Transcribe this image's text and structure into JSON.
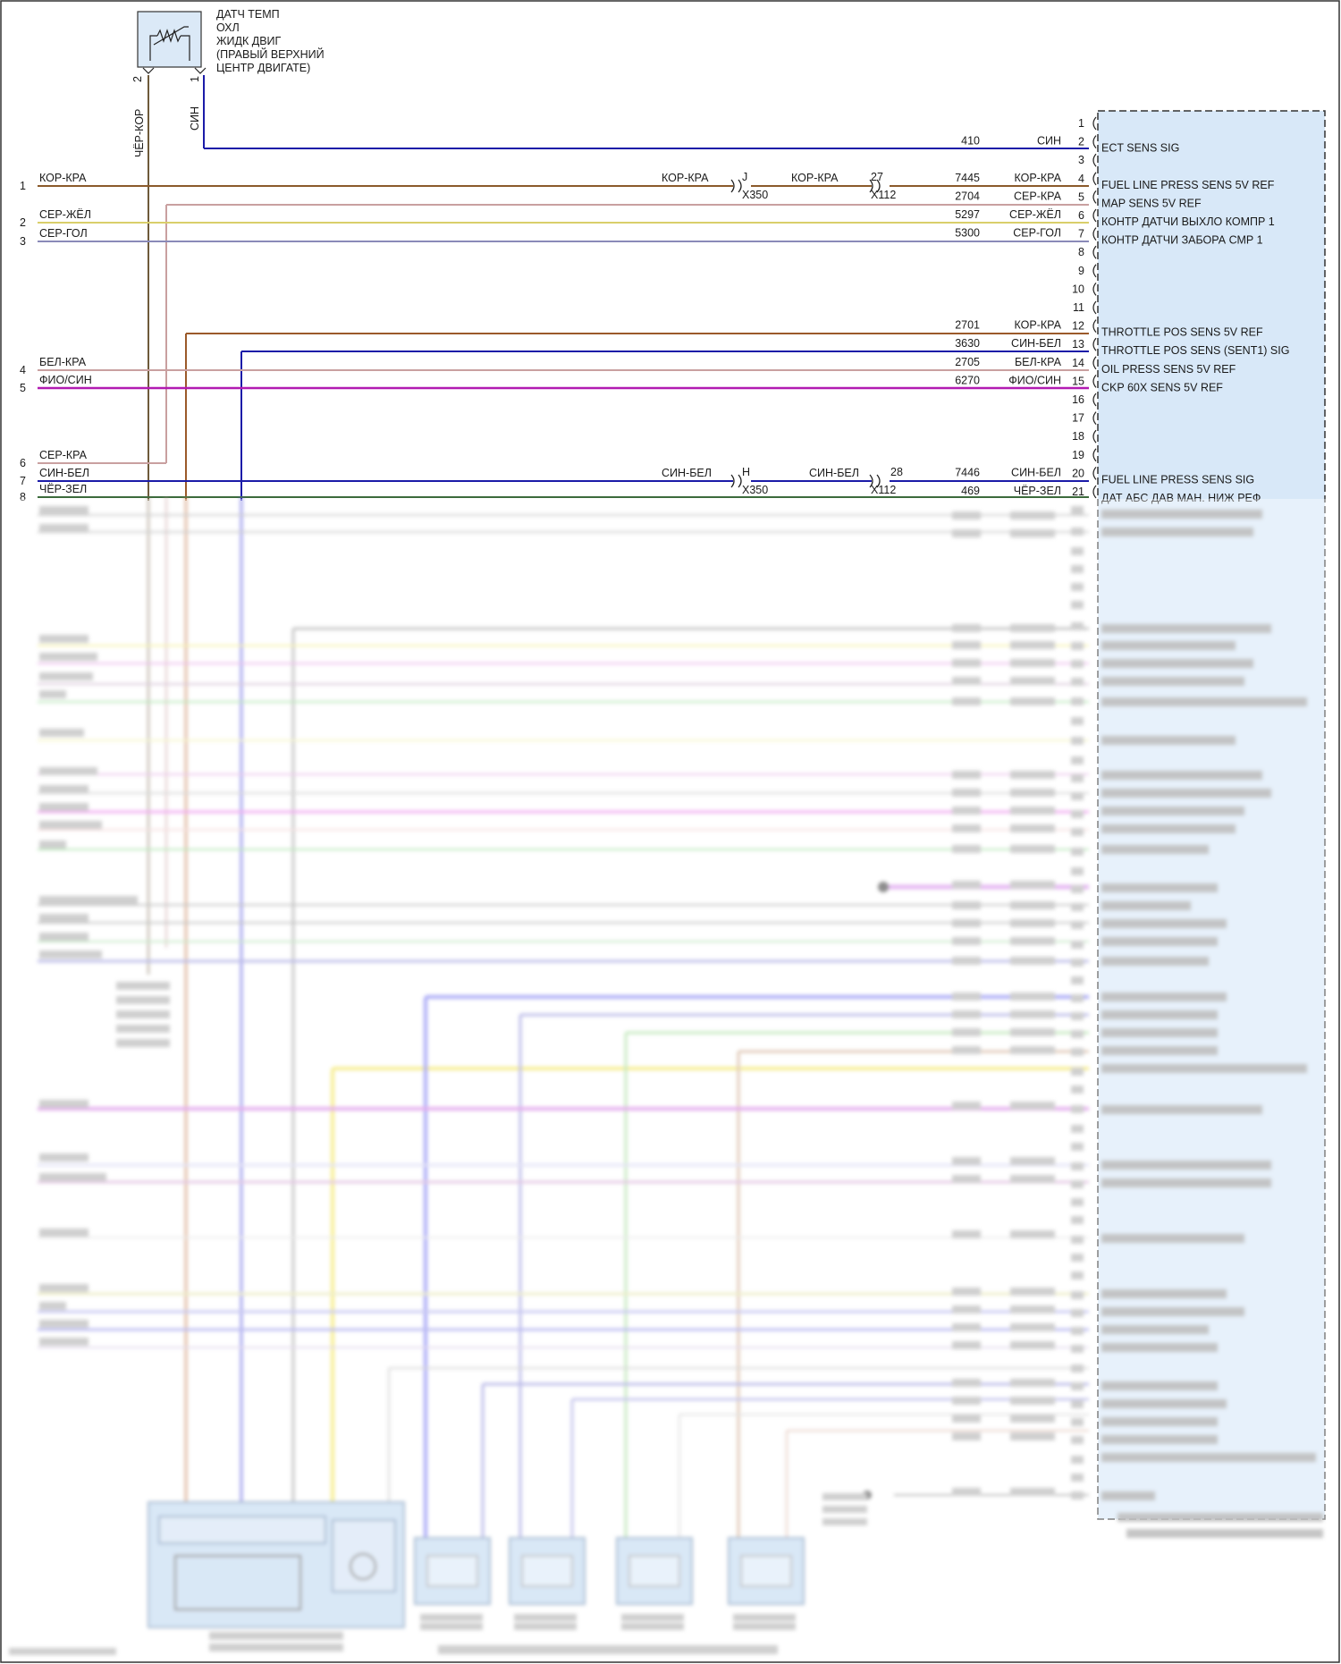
{
  "sensor": {
    "label_lines": [
      "ДАТЧ ТЕМП",
      "ОХЛ",
      "ЖИДК ДВИГ",
      "(ПРАВЫЙ ВЕРХНИЙ",
      "ЦЕНТР ДВИГАТЕ)"
    ],
    "pin_left": "2",
    "pin_right": "1",
    "wire_left_color_text": "ЧЁР-КОР",
    "wire_right_color_text": "СИН"
  },
  "colors": {
    "brown": "#8b5a2b",
    "pink": "#d4a5a5",
    "yellow": "#d9cf6a",
    "grayblue": "#8a8ab8",
    "blue": "#1b1ba8",
    "violet": "#b21bb2",
    "module_fill": "#d8e8f8",
    "sensor_fill": "#dbe9f7"
  },
  "module_pins": [
    {
      "pin": "1",
      "circuit": "",
      "color": "",
      "label": ""
    },
    {
      "pin": "2",
      "circuit": "410",
      "color": "СИН",
      "label": "ECT SENS SIG"
    },
    {
      "pin": "3",
      "circuit": "",
      "color": "",
      "label": ""
    },
    {
      "pin": "4",
      "circuit": "7445",
      "color": "КОР-КРА",
      "label": "FUEL LINE PRESS SENS 5V REF"
    },
    {
      "pin": "5",
      "circuit": "2704",
      "color": "СЕР-КРА",
      "label": "MAP SENS 5V REF"
    },
    {
      "pin": "6",
      "circuit": "5297",
      "color": "СЕР-ЖЁЛ",
      "label": "КОНТР ДАТЧИ ВЫХЛО КОМПР 1"
    },
    {
      "pin": "7",
      "circuit": "5300",
      "color": "СЕР-ГОЛ",
      "label": "КОНТР ДАТЧИ ЗАБОРА СМР 1"
    },
    {
      "pin": "8",
      "circuit": "",
      "color": "",
      "label": ""
    },
    {
      "pin": "9",
      "circuit": "",
      "color": "",
      "label": ""
    },
    {
      "pin": "10",
      "circuit": "",
      "color": "",
      "label": ""
    },
    {
      "pin": "11",
      "circuit": "",
      "color": "",
      "label": ""
    },
    {
      "pin": "12",
      "circuit": "2701",
      "color": "КОР-КРА",
      "label": "THROTTLE POS SENS 5V REF"
    },
    {
      "pin": "13",
      "circuit": "3630",
      "color": "СИН-БЕЛ",
      "label": "THROTTLE POS SENS (SENT1) SIG"
    },
    {
      "pin": "14",
      "circuit": "2705",
      "color": "БЕЛ-КРА",
      "label": "OIL PRESS SENS 5V REF"
    },
    {
      "pin": "15",
      "circuit": "6270",
      "color": "ФИО/СИН",
      "label": "CKP 60X SENS 5V REF"
    },
    {
      "pin": "16",
      "circuit": "",
      "color": "",
      "label": ""
    },
    {
      "pin": "17",
      "circuit": "",
      "color": "",
      "label": ""
    },
    {
      "pin": "18",
      "circuit": "",
      "color": "",
      "label": ""
    },
    {
      "pin": "19",
      "circuit": "",
      "color": "",
      "label": ""
    },
    {
      "pin": "20",
      "circuit": "7446",
      "color": "СИН-БЕЛ",
      "label": "FUEL LINE PRESS SENS SIG"
    },
    {
      "pin": "21",
      "circuit": "469",
      "color": "ЧЁР-ЗЕЛ",
      "label": "ДАТ АБС ДАВ МАН. НИЖ РЕФ"
    }
  ],
  "left_wires": [
    {
      "num": "1",
      "color": "КОР-КРА"
    },
    {
      "num": "2",
      "color": "СЕР-ЖЁЛ"
    },
    {
      "num": "3",
      "color": "СЕР-ГОЛ"
    },
    {
      "num": "4",
      "color": "БЕЛ-КРА"
    },
    {
      "num": "5",
      "color": "ФИО/СИН"
    },
    {
      "num": "6",
      "color": "СЕР-КРА"
    },
    {
      "num": "7",
      "color": "СИН-БЕЛ"
    },
    {
      "num": "8",
      "color": "ЧЁР-ЗЕЛ"
    }
  ],
  "connectors": {
    "j_letter": "J",
    "h_letter": "H",
    "x350": "X350",
    "pin27": "27",
    "pin28": "28",
    "x112": "X112",
    "kor_kra": "КОР-КРА",
    "sin_bel": "СИН-БЕЛ"
  }
}
